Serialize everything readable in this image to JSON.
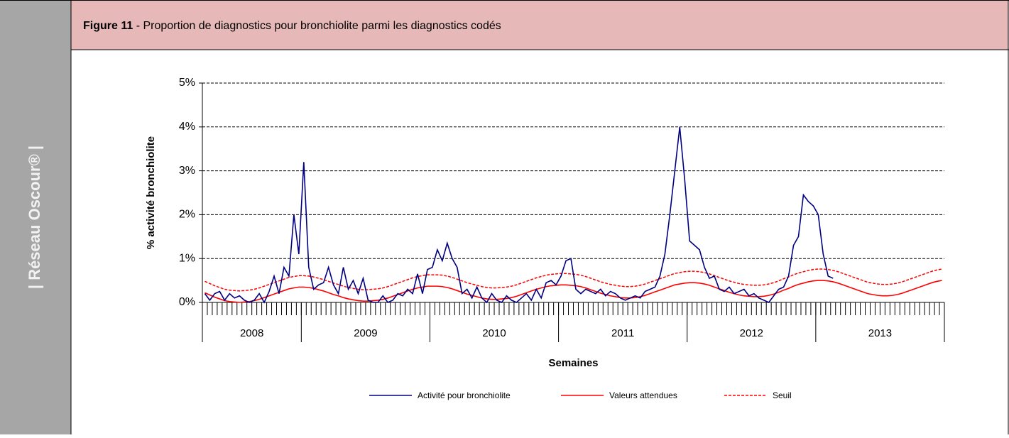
{
  "sidebar": "| Réseau Oscour® |",
  "header": {
    "figure": "Figure 11",
    "title": " - Proportion de diagnostics pour bronchiolite parmi les diagnostics codés"
  },
  "chart_data": {
    "type": "line",
    "x_title": "Semaines",
    "y_title": "% activité bronchiolite",
    "ylim": [
      0,
      5
    ],
    "yticks": [
      {
        "value": 0,
        "label": "0%"
      },
      {
        "value": 1,
        "label": "1%"
      },
      {
        "value": 2,
        "label": "2%"
      },
      {
        "value": 3,
        "label": "3%"
      },
      {
        "value": 4,
        "label": "4%"
      },
      {
        "value": 5,
        "label": "5%"
      }
    ],
    "grid": true,
    "categories": [
      "2008",
      null,
      null,
      null,
      null,
      null,
      null,
      null,
      null,
      null,
      null,
      null,
      null,
      null,
      null,
      null,
      null,
      null,
      null,
      null,
      "2009",
      null,
      null,
      null,
      null,
      null,
      null,
      null,
      null,
      null,
      null,
      null,
      null,
      null,
      null,
      null,
      null,
      null,
      null,
      null,
      null,
      null,
      null,
      null,
      null,
      null,
      "2010",
      null,
      null,
      null,
      null,
      null,
      null,
      null,
      null,
      null,
      null,
      null,
      null,
      null,
      null,
      null,
      null,
      null,
      null,
      null,
      null,
      null,
      null,
      null,
      null,
      null,
      "2011",
      null,
      null,
      null,
      null,
      null,
      null,
      null,
      null,
      null,
      null,
      null,
      null,
      null,
      null,
      null,
      null,
      null,
      null,
      null,
      null,
      null,
      null,
      null,
      null,
      null,
      "2012",
      null,
      null,
      null,
      null,
      null,
      null,
      null,
      null,
      null,
      null,
      null,
      null,
      null,
      null,
      null,
      null,
      null,
      null,
      null,
      null,
      null,
      null,
      null,
      null,
      null,
      "2013",
      null,
      null,
      null,
      null,
      null,
      null,
      null,
      null,
      null,
      null,
      null,
      null,
      null,
      null,
      null,
      null,
      null,
      null,
      null,
      null,
      null,
      null,
      null,
      null,
      null
    ],
    "series": [
      {
        "name": "Activité pour bronchiolite",
        "color": "#000080",
        "dash": false,
        "values": [
          0.2,
          0.05,
          0.2,
          0.25,
          0.05,
          0.2,
          0.1,
          0.15,
          0.05,
          0.0,
          0.05,
          0.2,
          0.0,
          0.25,
          0.6,
          0.2,
          0.8,
          0.6,
          2.0,
          1.1,
          3.2,
          0.8,
          0.3,
          0.4,
          0.45,
          0.8,
          0.4,
          0.2,
          0.8,
          0.3,
          0.5,
          0.2,
          0.55,
          0.05,
          0.0,
          0.0,
          0.15,
          0.0,
          0.05,
          0.2,
          0.15,
          0.3,
          0.2,
          0.65,
          0.2,
          0.75,
          0.8,
          1.2,
          0.95,
          1.35,
          1.0,
          0.8,
          0.2,
          0.3,
          0.1,
          0.35,
          0.1,
          0.0,
          0.2,
          0.05,
          0.0,
          0.15,
          0.05,
          0.0,
          0.1,
          0.2,
          0.05,
          0.3,
          0.1,
          0.45,
          0.5,
          0.4,
          0.6,
          0.95,
          1.0,
          0.3,
          0.2,
          0.3,
          0.25,
          0.2,
          0.3,
          0.15,
          0.25,
          0.2,
          0.1,
          0.05,
          0.1,
          0.15,
          0.1,
          0.25,
          0.3,
          0.35,
          0.6,
          1.1,
          2.0,
          3.0,
          4.0,
          2.8,
          1.4,
          1.3,
          1.2,
          0.8,
          0.55,
          0.6,
          0.3,
          0.25,
          0.35,
          0.2,
          0.25,
          0.3,
          0.15,
          0.2,
          0.1,
          0.05,
          0.0,
          0.15,
          0.3,
          0.35,
          0.6,
          1.3,
          1.5,
          2.45,
          2.3,
          2.2,
          2.0,
          1.1,
          0.6,
          0.55,
          null,
          null,
          null,
          null,
          null,
          null,
          null,
          null,
          null,
          null,
          null,
          null,
          null,
          null,
          null,
          null,
          null,
          null,
          null,
          null,
          null,
          null
        ]
      },
      {
        "name": "Valeurs attendues",
        "color": "#ff0000",
        "dash": false,
        "values": [
          0.22,
          0.17,
          0.12,
          0.08,
          0.04,
          0.02,
          0.01,
          0.0,
          0.01,
          0.02,
          0.04,
          0.07,
          0.11,
          0.15,
          0.19,
          0.23,
          0.27,
          0.31,
          0.33,
          0.35,
          0.35,
          0.34,
          0.32,
          0.29,
          0.26,
          0.22,
          0.18,
          0.15,
          0.11,
          0.08,
          0.06,
          0.04,
          0.03,
          0.03,
          0.04,
          0.05,
          0.07,
          0.1,
          0.14,
          0.18,
          0.22,
          0.26,
          0.3,
          0.33,
          0.35,
          0.37,
          0.37,
          0.37,
          0.36,
          0.34,
          0.31,
          0.27,
          0.23,
          0.19,
          0.16,
          0.13,
          0.1,
          0.08,
          0.07,
          0.07,
          0.08,
          0.09,
          0.11,
          0.14,
          0.18,
          0.22,
          0.26,
          0.3,
          0.33,
          0.36,
          0.38,
          0.39,
          0.4,
          0.4,
          0.39,
          0.38,
          0.36,
          0.33,
          0.29,
          0.25,
          0.21,
          0.18,
          0.15,
          0.13,
          0.11,
          0.1,
          0.1,
          0.11,
          0.13,
          0.16,
          0.2,
          0.24,
          0.28,
          0.32,
          0.36,
          0.4,
          0.42,
          0.44,
          0.45,
          0.45,
          0.44,
          0.42,
          0.39,
          0.35,
          0.31,
          0.27,
          0.23,
          0.2,
          0.17,
          0.15,
          0.14,
          0.13,
          0.13,
          0.14,
          0.16,
          0.19,
          0.23,
          0.28,
          0.32,
          0.37,
          0.41,
          0.44,
          0.47,
          0.49,
          0.5,
          0.5,
          0.49,
          0.47,
          0.44,
          0.4,
          0.36,
          0.32,
          0.28,
          0.24,
          0.2,
          0.18,
          0.16,
          0.15,
          0.15,
          0.16,
          0.18,
          0.21,
          0.25,
          0.29,
          0.33,
          0.37,
          0.41,
          0.45,
          0.48,
          0.5
        ]
      },
      {
        "name": "Seuil",
        "color": "#ff0000",
        "dash": true,
        "values": [
          0.48,
          0.43,
          0.38,
          0.34,
          0.3,
          0.28,
          0.27,
          0.26,
          0.27,
          0.28,
          0.3,
          0.33,
          0.37,
          0.41,
          0.45,
          0.49,
          0.53,
          0.57,
          0.59,
          0.61,
          0.61,
          0.6,
          0.58,
          0.55,
          0.52,
          0.48,
          0.44,
          0.41,
          0.37,
          0.34,
          0.32,
          0.3,
          0.29,
          0.29,
          0.3,
          0.31,
          0.33,
          0.36,
          0.4,
          0.44,
          0.48,
          0.52,
          0.56,
          0.59,
          0.61,
          0.63,
          0.63,
          0.63,
          0.62,
          0.6,
          0.57,
          0.53,
          0.49,
          0.45,
          0.42,
          0.39,
          0.36,
          0.34,
          0.33,
          0.33,
          0.34,
          0.35,
          0.37,
          0.4,
          0.44,
          0.48,
          0.52,
          0.56,
          0.59,
          0.62,
          0.64,
          0.65,
          0.66,
          0.66,
          0.65,
          0.64,
          0.62,
          0.59,
          0.55,
          0.51,
          0.47,
          0.44,
          0.41,
          0.39,
          0.37,
          0.36,
          0.36,
          0.37,
          0.39,
          0.42,
          0.46,
          0.5,
          0.54,
          0.58,
          0.62,
          0.66,
          0.68,
          0.7,
          0.71,
          0.71,
          0.7,
          0.68,
          0.65,
          0.61,
          0.57,
          0.53,
          0.49,
          0.46,
          0.43,
          0.41,
          0.4,
          0.39,
          0.39,
          0.4,
          0.42,
          0.45,
          0.49,
          0.54,
          0.58,
          0.63,
          0.67,
          0.7,
          0.73,
          0.75,
          0.76,
          0.76,
          0.75,
          0.73,
          0.7,
          0.66,
          0.62,
          0.58,
          0.54,
          0.5,
          0.46,
          0.44,
          0.42,
          0.41,
          0.41,
          0.42,
          0.44,
          0.47,
          0.51,
          0.55,
          0.59,
          0.63,
          0.67,
          0.71,
          0.74,
          0.76
        ]
      }
    ]
  }
}
